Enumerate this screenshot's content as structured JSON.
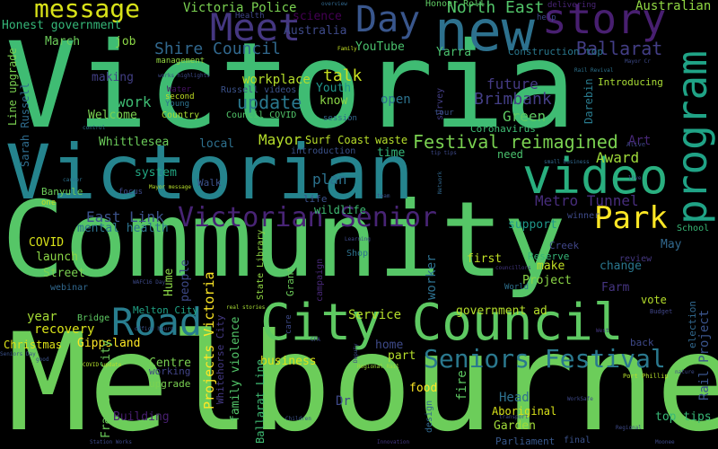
{
  "words": [
    {
      "text": "Victoria",
      "color": "#3fbc73"
    },
    {
      "text": "Community",
      "color": "#56c667"
    },
    {
      "text": "Melbourne",
      "color": "#6ccd5a"
    },
    {
      "text": "Victorian",
      "color": "#25848e"
    },
    {
      "text": "new",
      "color": "#2d718e"
    },
    {
      "text": "story",
      "color": "#481f70"
    },
    {
      "text": "Day",
      "color": "#39568c"
    },
    {
      "text": "Meet",
      "color": "#453781"
    },
    {
      "text": "video",
      "color": "#29af7f"
    },
    {
      "text": "program",
      "color": "#20a386"
    },
    {
      "text": "City Council",
      "color": "#5ec962"
    },
    {
      "text": "Road",
      "color": "#287d8e"
    },
    {
      "text": "Park",
      "color": "#fde725"
    },
    {
      "text": "Victorian Senior",
      "color": "#482475"
    },
    {
      "text": "Seniors Festival",
      "color": "#2a788e"
    },
    {
      "text": "message",
      "color": "#d8e219"
    },
    {
      "text": "Victoria Police",
      "color": "#7ad151"
    },
    {
      "text": "North East",
      "color": "#52c569"
    },
    {
      "text": "Australian",
      "color": "#90d743"
    },
    {
      "text": "Festival reimagined",
      "color": "#7ad151"
    },
    {
      "text": "Shire Council",
      "color": "#31688e"
    },
    {
      "text": "Ballarat",
      "color": "#433e85"
    },
    {
      "text": "Brimbank",
      "color": "#433e85"
    },
    {
      "text": "future",
      "color": "#443a83"
    },
    {
      "text": "Green",
      "color": "#5ec962"
    },
    {
      "text": "update",
      "color": "#2a788e"
    },
    {
      "text": "work",
      "color": "#3fbc73"
    },
    {
      "text": "Award",
      "color": "#9fda3a"
    },
    {
      "text": "Metro Tunnel",
      "color": "#472d7b"
    },
    {
      "text": "East Link",
      "color": "#3b528b"
    },
    {
      "text": "Mayor",
      "color": "#b5de2b"
    },
    {
      "text": "plan",
      "color": "#2c728e"
    },
    {
      "text": "talk",
      "color": "#cae11f"
    },
    {
      "text": "Honest government",
      "color": "#35b779"
    },
    {
      "text": "March",
      "color": "#6ccd5a"
    },
    {
      "text": "job",
      "color": "#8bd646"
    },
    {
      "text": "Australia",
      "color": "#3e4a89"
    },
    {
      "text": "science",
      "color": "#440154"
    },
    {
      "text": "YouTube",
      "color": "#4ac16d"
    },
    {
      "text": "Yarra",
      "color": "#4ac16d"
    },
    {
      "text": "Honour Roll",
      "color": "#5ec962"
    },
    {
      "text": "workplace",
      "color": "#b5de2b"
    },
    {
      "text": "Russell videos",
      "color": "#3b528b"
    },
    {
      "text": "Youth",
      "color": "#1f968b"
    },
    {
      "text": "know",
      "color": "#8bd646"
    },
    {
      "text": "open",
      "color": "#2c728e"
    },
    {
      "text": "Welcome",
      "color": "#7ad151"
    },
    {
      "text": "making",
      "color": "#423f85"
    },
    {
      "text": "Council COVID",
      "color": "#52c569"
    },
    {
      "text": "session",
      "color": "#31688e"
    },
    {
      "text": "Whittlesea",
      "color": "#6ccd5a"
    },
    {
      "text": "local",
      "color": "#2d708e"
    },
    {
      "text": "Surf Coast",
      "color": "#b8de29"
    },
    {
      "text": "waste",
      "color": "#b5de2b"
    },
    {
      "text": "time",
      "color": "#35b779"
    },
    {
      "text": "introduction",
      "color": "#3b528b"
    },
    {
      "text": "need",
      "color": "#4ac16d"
    },
    {
      "text": "Coronavirus",
      "color": "#3fbc73"
    },
    {
      "text": "Art",
      "color": "#482878"
    },
    {
      "text": "system",
      "color": "#22a884"
    },
    {
      "text": "Walk",
      "color": "#3b528b"
    },
    {
      "text": "mental health",
      "color": "#2c728e"
    },
    {
      "text": "COVID",
      "color": "#d8e219"
    },
    {
      "text": "launch",
      "color": "#8bd646"
    },
    {
      "text": "Street",
      "color": "#7ad151"
    },
    {
      "text": "webinar",
      "color": "#31688e"
    },
    {
      "text": "Melton City",
      "color": "#20a386"
    },
    {
      "text": "Bridge",
      "color": "#5ec962"
    },
    {
      "text": "year",
      "color": "#a5db36"
    },
    {
      "text": "recovery",
      "color": "#d8e219"
    },
    {
      "text": "Christmas",
      "color": "#dde318"
    },
    {
      "text": "Gippsland",
      "color": "#fde725"
    },
    {
      "text": "Service",
      "color": "#b5de2b"
    },
    {
      "text": "business",
      "color": "#dde318"
    },
    {
      "text": "Centre",
      "color": "#7ad151"
    },
    {
      "text": "Building",
      "color": "#481f70"
    },
    {
      "text": "Head",
      "color": "#2d708e"
    },
    {
      "text": "Garden",
      "color": "#a0da39"
    },
    {
      "text": "Aboriginal",
      "color": "#d8e219"
    },
    {
      "text": "Parliament",
      "color": "#38588c"
    },
    {
      "text": "food",
      "color": "#fde725"
    },
    {
      "text": "Dr",
      "color": "#3e4989"
    },
    {
      "text": "part",
      "color": "#b5de2b"
    },
    {
      "text": "home",
      "color": "#3e4a89"
    },
    {
      "text": "government ad",
      "color": "#b5de2b"
    },
    {
      "text": "support",
      "color": "#1f988b"
    },
    {
      "text": "first",
      "color": "#c0df25"
    },
    {
      "text": "make",
      "color": "#c2df23"
    },
    {
      "text": "Project",
      "color": "#8bd646"
    },
    {
      "text": "Farm",
      "color": "#453581"
    },
    {
      "text": "change",
      "color": "#2a768e"
    },
    {
      "text": "vote",
      "color": "#b5de2b"
    },
    {
      "text": "May",
      "color": "#31688e"
    },
    {
      "text": "top tips",
      "color": "#38b977"
    },
    {
      "text": "upgrade",
      "color": "#7ad151"
    },
    {
      "text": "working",
      "color": "#414487"
    },
    {
      "text": "people",
      "color": "#3e4a89"
    },
    {
      "text": "Hume",
      "color": "#8bd646"
    },
    {
      "text": "Grant",
      "color": "#6ccd5a"
    },
    {
      "text": "wildlife",
      "color": "#3fbc73"
    },
    {
      "text": "life",
      "color": "#3b528b"
    },
    {
      "text": "Shop",
      "color": "#2c728e"
    },
    {
      "text": "campaign",
      "color": "#482878"
    },
    {
      "text": "Reserve",
      "color": "#35b779"
    },
    {
      "text": "Creek",
      "color": "#404688"
    },
    {
      "text": "winner",
      "color": "#3e4a89"
    },
    {
      "text": "review",
      "color": "#453781"
    },
    {
      "text": "Introducing",
      "color": "#a8db34"
    },
    {
      "text": "School",
      "color": "#38b977"
    },
    {
      "text": "back",
      "color": "#3e4989"
    },
    {
      "text": "Budget",
      "color": "#404688"
    },
    {
      "text": "Construction top",
      "color": "#2a788e"
    },
    {
      "text": "Frankston City",
      "color": "#6ccd5a"
    },
    {
      "text": "Ballarat Line",
      "color": "#3fbc73"
    },
    {
      "text": "family violence",
      "color": "#52c569"
    },
    {
      "text": "Projects Victoria",
      "color": "#fde725"
    },
    {
      "text": "Whitehorse City",
      "color": "#443983"
    },
    {
      "text": "State Library",
      "color": "#90d743"
    },
    {
      "text": "Line upgrade",
      "color": "#7ad151"
    },
    {
      "text": "Sarah Russell",
      "color": "#2f6c8e"
    },
    {
      "text": "Banyule",
      "color": "#6ccd5a"
    },
    {
      "text": "Darebin",
      "color": "#297b8e"
    },
    {
      "text": "survey",
      "color": "#433e85"
    },
    {
      "text": "Country",
      "color": "#a8db34"
    },
    {
      "text": "second",
      "color": "#c2df23"
    },
    {
      "text": "Young",
      "color": "#2c728e"
    },
    {
      "text": "Water",
      "color": "#471164"
    },
    {
      "text": "Health",
      "color": "#404688"
    },
    {
      "text": "management",
      "color": "#93d741"
    },
    {
      "text": "help",
      "color": "#3e4989"
    },
    {
      "text": "delivering",
      "color": "#482475"
    },
    {
      "text": "overview",
      "color": "#31688e"
    },
    {
      "text": "Rail Project",
      "color": "#3a548c"
    },
    {
      "text": "fire",
      "color": "#5ec962"
    },
    {
      "text": "design",
      "color": "#31688e"
    },
    {
      "text": "election",
      "color": "#31688e"
    },
    {
      "text": "final",
      "color": "#3b528b"
    },
    {
      "text": "worker",
      "color": "#2d708e"
    },
    {
      "text": "Port Phillip",
      "color": "#b5de2b"
    },
    {
      "text": "Regional Rail",
      "color": "#a0da39"
    },
    {
      "text": "tour",
      "color": "#3b528b"
    },
    {
      "text": "control",
      "color": "#2c728e"
    },
    {
      "text": "Alive",
      "color": "#3e4989"
    },
    {
      "text": "small business",
      "color": "#31688e"
    },
    {
      "text": "Mayor message",
      "color": "#b5de2b"
    },
    {
      "text": "focus",
      "color": "#3e4a89"
    },
    {
      "text": "career",
      "color": "#2c728e"
    },
    {
      "text": "one",
      "color": "#c2df23"
    },
    {
      "text": "team",
      "color": "#3b528b"
    },
    {
      "text": "transport",
      "color": "#3e4a89"
    },
    {
      "text": "WorkSafe",
      "color": "#3e4989"
    },
    {
      "text": "councillors",
      "color": "#453781"
    },
    {
      "text": "nature",
      "color": "#3e4a89"
    },
    {
      "text": "Children",
      "color": "#3b528b"
    },
    {
      "text": "real stories",
      "color": "#a8db34"
    },
    {
      "text": "Family",
      "color": "#c2df23"
    },
    {
      "text": "Network",
      "color": "#31688e"
    },
    {
      "text": "Mayor Cr",
      "color": "#3e4a89"
    },
    {
      "text": "Rail Revival",
      "color": "#2c728e"
    },
    {
      "text": "World",
      "color": "#2d708e"
    },
    {
      "text": "COVID update",
      "color": "#b5de2b"
    },
    {
      "text": "good",
      "color": "#3b528b"
    },
    {
      "text": "West",
      "color": "#453781"
    },
    {
      "text": "care",
      "color": "#3e4a89"
    },
    {
      "text": "Seniors Day",
      "color": "#3b528b"
    },
    {
      "text": "works highlights",
      "color": "#3e4a89"
    },
    {
      "text": "WAFC16 Day",
      "color": "#3e4a89"
    },
    {
      "text": "office hours",
      "color": "#3b528b"
    },
    {
      "text": "Learning",
      "color": "#3e4989"
    },
    {
      "text": "Innovation",
      "color": "#453781"
    },
    {
      "text": "Station Works",
      "color": "#3e4a89"
    },
    {
      "text": "live",
      "color": "#3e4a89"
    },
    {
      "text": "CFA",
      "color": "#3e4989"
    },
    {
      "text": "Deputy",
      "color": "#3e4a89"
    },
    {
      "text": "tip tips",
      "color": "#3e4a89"
    },
    {
      "text": "Moonee",
      "color": "#3e4a89"
    },
    {
      "text": "Regional",
      "color": "#3e4a89"
    }
  ]
}
